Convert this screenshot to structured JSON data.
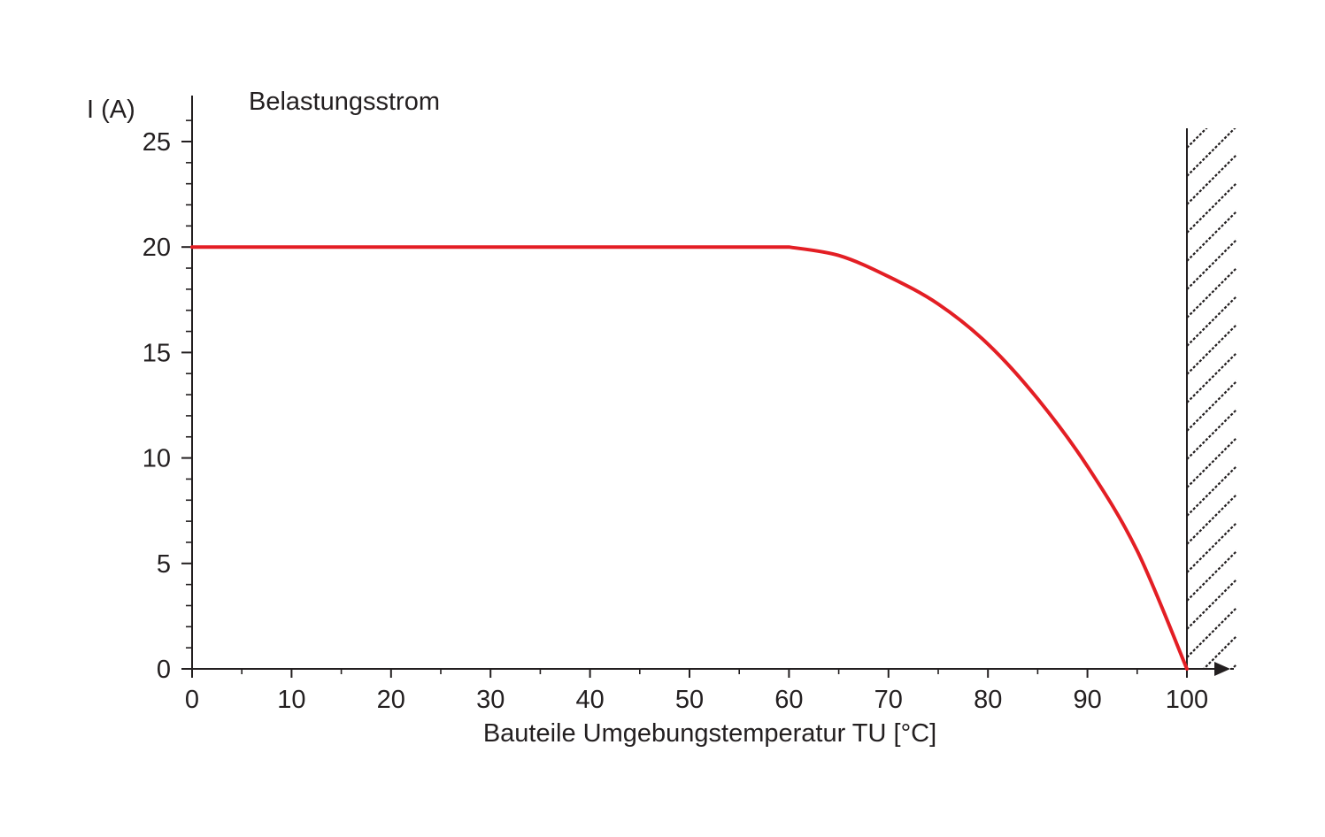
{
  "chart_data": {
    "type": "line",
    "title": "Belastungsstrom",
    "xlabel": "Bauteile Umgebungstemperatur TU [°C]",
    "ylabel": "I (A)",
    "xlim": [
      0,
      104
    ],
    "ylim": [
      0,
      26
    ],
    "x_ticks": [
      "0",
      "10",
      "20",
      "30",
      "40",
      "50",
      "60",
      "70",
      "80",
      "90",
      "100"
    ],
    "y_ticks": [
      "0",
      "5",
      "10",
      "15",
      "20",
      "25"
    ],
    "grid": false,
    "series": [
      {
        "color": "#e31e24",
        "x": [
          0,
          60,
          65,
          70,
          75,
          80,
          85,
          90,
          95,
          100
        ],
        "y": [
          20,
          20,
          19.6,
          18.6,
          17.3,
          15.4,
          12.8,
          9.6,
          5.6,
          0
        ]
      }
    ],
    "hatched_region": {
      "x_start": 100,
      "x_end": 104
    },
    "colors": {
      "axis": "#231f20",
      "curve": "#e31e24",
      "background": "#ffffff"
    }
  }
}
